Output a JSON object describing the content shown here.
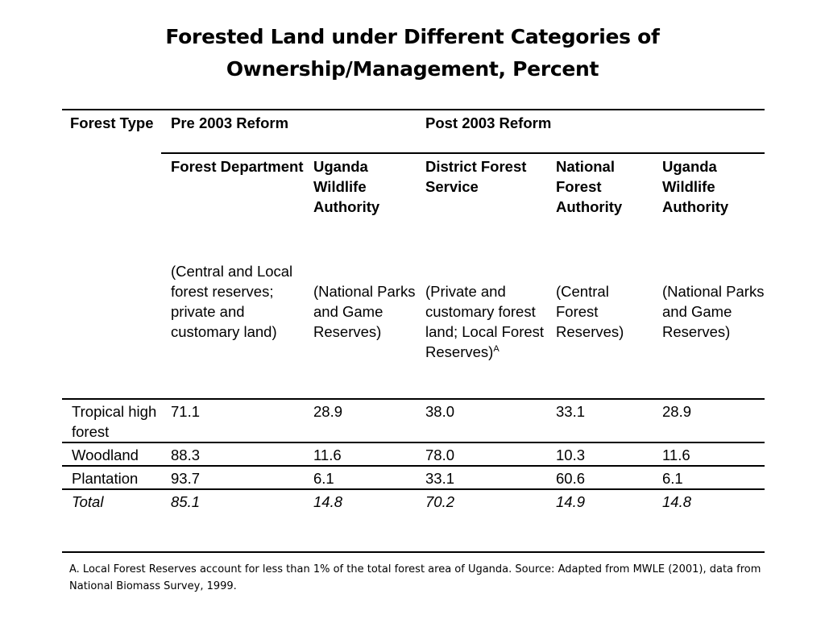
{
  "title": {
    "line1": "Forested Land under Different Categories of",
    "line2": "Ownership/Management, Percent"
  },
  "table": {
    "forest_type_header": "Forest Type",
    "group_headers": {
      "pre": "Pre 2003 Reform",
      "post": "Post 2003 Reform"
    },
    "columns": [
      {
        "heading": "Forest Department",
        "description": "(Central and Local forest reserves; private and customary land)"
      },
      {
        "heading": "Uganda Wildlife Authority",
        "description": "(National Parks and Game Reserves)"
      },
      {
        "heading": "District Forest Service",
        "description": "(Private and customary forest land; Local Forest Reserves)",
        "description_sup": "A"
      },
      {
        "heading": "National Forest Authority",
        "description": "(Central Forest Reserves)"
      },
      {
        "heading": "Uganda Wildlife Authority",
        "description": "(National Parks and Game Reserves)"
      }
    ],
    "rows": [
      {
        "label": "Tropical high forest",
        "values": [
          "71.1",
          "28.9",
          "38.0",
          "33.1",
          "28.9"
        ]
      },
      {
        "label": "Woodland",
        "values": [
          "88.3",
          "11.6",
          "78.0",
          "10.3",
          "11.6"
        ]
      },
      {
        "label": "Plantation",
        "values": [
          "93.7",
          "6.1",
          "33.1",
          "60.6",
          "6.1"
        ]
      },
      {
        "label": "Total",
        "values": [
          "85.1",
          "14.8",
          "70.2",
          "14.9",
          "14.8"
        ]
      }
    ]
  },
  "footnote": "A. Local Forest Reserves account for less than 1% of the total forest area of Uganda. Source: Adapted from MWLE (2001), data from National Biomass Survey, 1999."
}
